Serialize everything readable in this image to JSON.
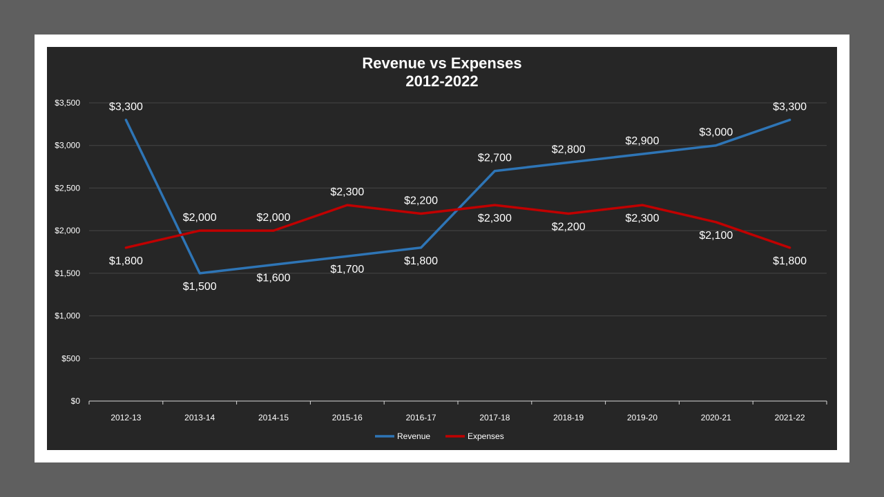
{
  "chart_data": {
    "type": "line",
    "title": "Revenue vs Expenses",
    "subtitle": "2012-2022",
    "categories": [
      "2012-13",
      "2013-14",
      "2014-15",
      "2015-16",
      "2016-17",
      "2017-18",
      "2018-19",
      "2019-20",
      "2020-21",
      "2021-22"
    ],
    "series": [
      {
        "name": "Revenue",
        "color": "#2e75b6",
        "values": [
          3300,
          1500,
          1600,
          1700,
          1800,
          2700,
          2800,
          2900,
          3000,
          3300
        ],
        "label_position": [
          "above",
          "below",
          "below",
          "below",
          "below",
          "above",
          "above",
          "above",
          "above",
          "above"
        ]
      },
      {
        "name": "Expenses",
        "color": "#c00000",
        "values": [
          1800,
          2000,
          2000,
          2300,
          2200,
          2300,
          2200,
          2300,
          2100,
          1800
        ],
        "label_position": [
          "below",
          "above",
          "above",
          "above",
          "above",
          "below",
          "below",
          "below",
          "below",
          "below"
        ]
      }
    ],
    "ylim": [
      0,
      3500
    ],
    "yticks": [
      0,
      500,
      1000,
      1500,
      2000,
      2500,
      3000,
      3500
    ],
    "ytick_labels": [
      "$0",
      "$500",
      "$1,000",
      "$1,500",
      "$2,000",
      "$2,500",
      "$3,000",
      "$3,500"
    ],
    "data_labels": [
      [
        "$3,300",
        "$1,500",
        "$1,600",
        "$1,700",
        "$1,800",
        "$2,700",
        "$2,800",
        "$2,900",
        "$3,000",
        "$3,300"
      ],
      [
        "$1,800",
        "$2,000",
        "$2,000",
        "$2,300",
        "$2,200",
        "$2,300",
        "$2,200",
        "$2,300",
        "$2,100",
        "$1,800"
      ]
    ],
    "grid": true,
    "legend": "bottom",
    "xlabel": "",
    "ylabel": ""
  }
}
